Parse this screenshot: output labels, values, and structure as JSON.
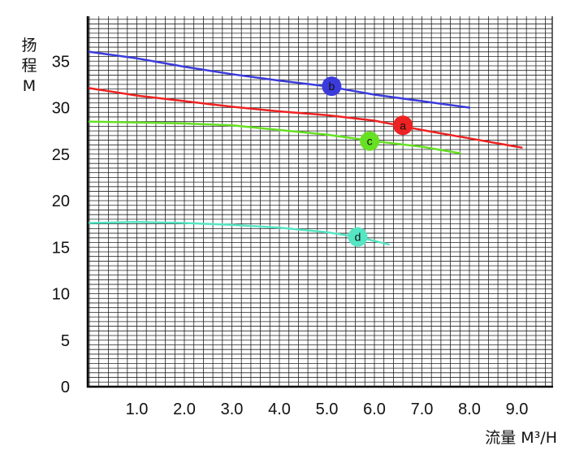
{
  "chart_data": {
    "type": "line",
    "title": "",
    "xlabel": "流量 M³/H",
    "ylabel_lines": [
      "扬",
      "程",
      "M"
    ],
    "xlim": [
      0,
      9.5
    ],
    "ylim": [
      0,
      38
    ],
    "grid": true,
    "x_ticks": [
      1.0,
      2.0,
      3.0,
      4.0,
      5.0,
      6.0,
      7.0,
      8.0,
      9.0
    ],
    "x_tick_labels": [
      "1.0",
      "2.0",
      "3.0",
      "4.0",
      "5.0",
      "6.0",
      "7.0",
      "8.0",
      "9.0"
    ],
    "y_ticks": [
      0,
      5,
      10,
      15,
      20,
      25,
      30,
      35
    ],
    "y_tick_labels": [
      "0",
      "5",
      "10",
      "15",
      "20",
      "25",
      "30",
      "35"
    ],
    "series": [
      {
        "name": "a",
        "color": "#ee2222",
        "points": [
          [
            0,
            32.1
          ],
          [
            1.0,
            31.3
          ],
          [
            2.0,
            30.7
          ],
          [
            3.0,
            30.1
          ],
          [
            4.0,
            29.6
          ],
          [
            5.0,
            29.2
          ],
          [
            6.0,
            28.6
          ],
          [
            6.6,
            28.0
          ],
          [
            7.0,
            27.6
          ],
          [
            8.0,
            26.7
          ],
          [
            9.1,
            25.7
          ]
        ],
        "marker": {
          "x": 6.6,
          "y": 28.1
        }
      },
      {
        "name": "b",
        "color": "#3b3bdc",
        "points": [
          [
            0,
            36.0
          ],
          [
            1.0,
            35.3
          ],
          [
            2.0,
            34.4
          ],
          [
            3.0,
            33.6
          ],
          [
            4.0,
            32.9
          ],
          [
            5.0,
            32.3
          ],
          [
            6.0,
            31.4
          ],
          [
            7.0,
            30.7
          ],
          [
            8.0,
            30.0
          ]
        ],
        "marker": {
          "x": 5.1,
          "y": 32.3
        }
      },
      {
        "name": "c",
        "color": "#66e022",
        "points": [
          [
            0,
            28.5
          ],
          [
            1.0,
            28.4
          ],
          [
            2.0,
            28.3
          ],
          [
            3.0,
            28.1
          ],
          [
            4.0,
            27.6
          ],
          [
            5.0,
            27.1
          ],
          [
            6.0,
            26.4
          ],
          [
            7.0,
            25.8
          ],
          [
            7.8,
            25.1
          ]
        ],
        "marker": {
          "x": 5.9,
          "y": 26.4
        }
      },
      {
        "name": "d",
        "color": "#55e6c4",
        "points": [
          [
            0,
            17.6
          ],
          [
            1.0,
            17.7
          ],
          [
            2.0,
            17.6
          ],
          [
            3.0,
            17.4
          ],
          [
            4.0,
            17.1
          ],
          [
            5.0,
            16.6
          ],
          [
            5.65,
            16.1
          ],
          [
            6.3,
            15.3
          ]
        ],
        "marker": {
          "x": 5.65,
          "y": 16.1
        }
      }
    ]
  }
}
